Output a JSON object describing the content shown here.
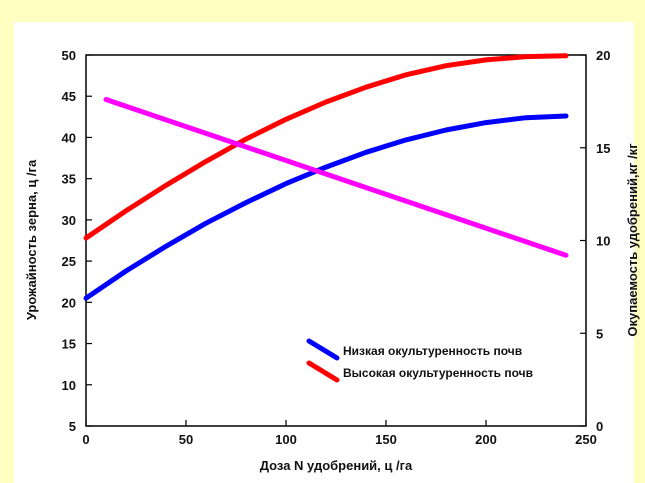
{
  "chart_data": {
    "type": "line",
    "title": "",
    "xlabel": "Доза N удобрений, ц /га",
    "ylabel_left": "Урожайность зерна, ц /га",
    "ylabel_right": "Окупаемость удобрений,кг /кг",
    "xlim": [
      0,
      250
    ],
    "ylim_left": [
      5,
      50
    ],
    "ylim_right": [
      0,
      20
    ],
    "x_ticks": [
      0,
      50,
      100,
      150,
      200,
      250
    ],
    "y_ticks_left": [
      5,
      10,
      15,
      20,
      25,
      30,
      35,
      40,
      45,
      50
    ],
    "y_ticks_right": [
      0,
      5,
      10,
      15,
      20
    ],
    "grid": false,
    "legend_position": "lower-right",
    "series": [
      {
        "name": "Низкая окультуренность почв",
        "axis": "left",
        "color": "#0000ff",
        "x": [
          0,
          20,
          40,
          60,
          80,
          100,
          120,
          140,
          160,
          180,
          200,
          220,
          240
        ],
        "y": [
          20.5,
          23.8,
          26.8,
          29.6,
          32.1,
          34.4,
          36.4,
          38.2,
          39.7,
          40.9,
          41.8,
          42.4,
          42.6
        ]
      },
      {
        "name": "Высокая окультуренность почв",
        "axis": "left",
        "color": "#ff0000",
        "x": [
          0,
          20,
          40,
          60,
          80,
          100,
          120,
          140,
          160,
          180,
          200,
          220,
          240
        ],
        "y": [
          27.8,
          31.1,
          34.2,
          37.1,
          39.8,
          42.2,
          44.3,
          46.1,
          47.6,
          48.7,
          49.4,
          49.8,
          49.9
        ]
      },
      {
        "name": "",
        "axis": "right",
        "color": "#ff00ff",
        "x": [
          10,
          240
        ],
        "y": [
          17.6,
          9.2
        ]
      }
    ]
  }
}
